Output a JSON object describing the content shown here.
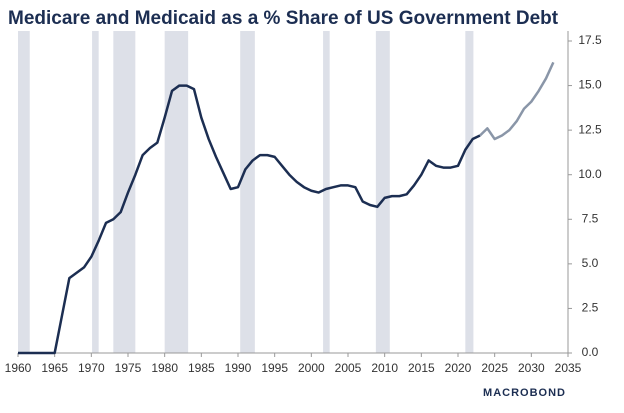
{
  "chart_data": {
    "type": "line",
    "title": "Medicare and Medicaid as a % Share of US Government Debt",
    "source": "MACROBOND",
    "xlim": [
      1960,
      2035
    ],
    "xticks": [
      1960,
      1965,
      1970,
      1975,
      1980,
      1985,
      1990,
      1995,
      2000,
      2005,
      2010,
      2015,
      2020,
      2025,
      2030,
      2035
    ],
    "ylim": [
      0,
      17.5
    ],
    "yticks": [
      {
        "value": 0,
        "label": "0.0"
      },
      {
        "value": 2.5,
        "label": "2.5"
      },
      {
        "value": 5,
        "label": "5.0"
      },
      {
        "value": 7.5,
        "label": "7.5"
      },
      {
        "value": 10,
        "label": "10.0"
      },
      {
        "value": 12.5,
        "label": "12.5"
      },
      {
        "value": 15,
        "label": "15.0"
      },
      {
        "value": 17.5,
        "label": "17.5"
      }
    ],
    "shaded_periods": [
      [
        1960,
        1961.6
      ],
      [
        1970.1,
        1971.0
      ],
      [
        1973.0,
        1976.0
      ],
      [
        1980.0,
        1983.2
      ],
      [
        1990.3,
        1992.3
      ],
      [
        2001.6,
        2002.5
      ],
      [
        2008.8,
        2010.7
      ],
      [
        2021.0,
        2022.1
      ]
    ],
    "shade_color": "#dde0e8",
    "series": [
      {
        "color": "#1c2e52",
        "x": [
          1960,
          1961,
          1962,
          1963,
          1964,
          1965,
          1966,
          1967,
          1968,
          1969,
          1970,
          1971,
          1972,
          1973,
          1974,
          1975,
          1976,
          1977,
          1978,
          1979,
          1980,
          1981,
          1982,
          1983,
          1984,
          1985,
          1986,
          1987,
          1988,
          1989,
          1990,
          1991,
          1992,
          1993,
          1994,
          1995,
          1996,
          1997,
          1998,
          1999,
          2000,
          2001,
          2002,
          2003,
          2004,
          2005,
          2006,
          2007,
          2008,
          2009,
          2010,
          2011,
          2012,
          2013,
          2014,
          2015,
          2016,
          2017,
          2018,
          2019,
          2020,
          2021,
          2022,
          2023
        ],
        "values": [
          0,
          0,
          0,
          0,
          0,
          0,
          2.1,
          4.2,
          4.5,
          4.8,
          5.4,
          6.3,
          7.3,
          7.5,
          7.9,
          9.0,
          10.0,
          11.1,
          11.5,
          11.8,
          13.2,
          14.7,
          15.0,
          15.0,
          14.8,
          13.2,
          12.0,
          11.0,
          10.1,
          9.2,
          9.3,
          10.3,
          10.8,
          11.1,
          11.1,
          11.0,
          10.5,
          10.0,
          9.6,
          9.3,
          9.1,
          9.0,
          9.2,
          9.3,
          9.4,
          9.4,
          9.3,
          8.5,
          8.3,
          8.2,
          8.7,
          8.8,
          8.8,
          8.9,
          9.4,
          10.0,
          10.8,
          10.5,
          10.4,
          10.4,
          10.5,
          11.4,
          12.0,
          12.2
        ]
      },
      {
        "color": "#8a96a8",
        "x": [
          2023,
          2024,
          2025,
          2026,
          2027,
          2028,
          2029,
          2030,
          2031,
          2032,
          2033
        ],
        "values": [
          12.2,
          12.6,
          12.0,
          12.2,
          12.5,
          13.0,
          13.7,
          14.1,
          14.7,
          15.4,
          16.3
        ]
      }
    ]
  }
}
